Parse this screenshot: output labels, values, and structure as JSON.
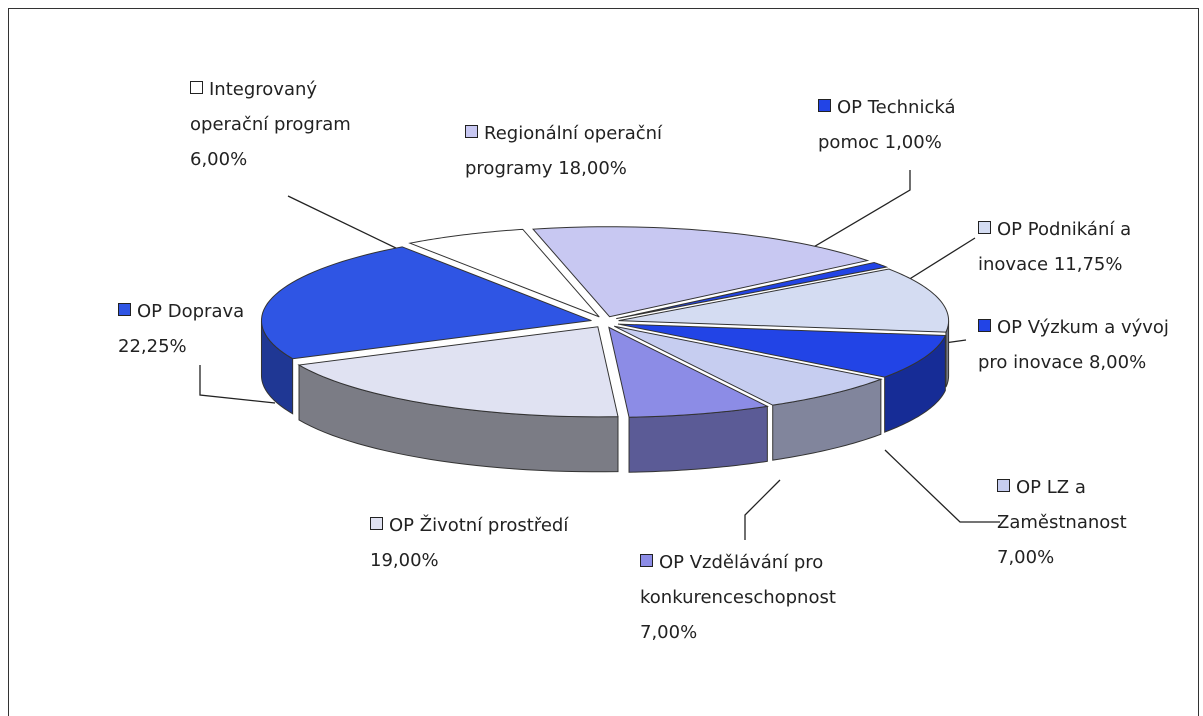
{
  "chart_data": {
    "type": "pie",
    "categories": [
      "Integrovaný operační program",
      "Regionální operační programy",
      "OP Technická pomoc",
      "OP Podnikání a inovace",
      "OP Výzkum a vývoj pro inovace",
      "OP LZ a Zaměstnanost",
      "OP Vzdělávání pro konkurenceschopnost",
      "OP Životní prostředí",
      "OP Doprava"
    ],
    "values": [
      6,
      18,
      1,
      11.75,
      8,
      7,
      7,
      19,
      22.25
    ],
    "value_labels": [
      "6,00%",
      "18,00%",
      "1,00%",
      "11,75%",
      "8,00%",
      "7,00%",
      "7,00%",
      "19,00%",
      "22,25%"
    ],
    "colors": [
      "#ffffff",
      "#c8c8f2",
      "#2244e6",
      "#d4dcf2",
      "#2244e6",
      "#c6cdf0",
      "#8c8ce6",
      "#e0e2f2",
      "#2f55e4"
    ]
  }
}
